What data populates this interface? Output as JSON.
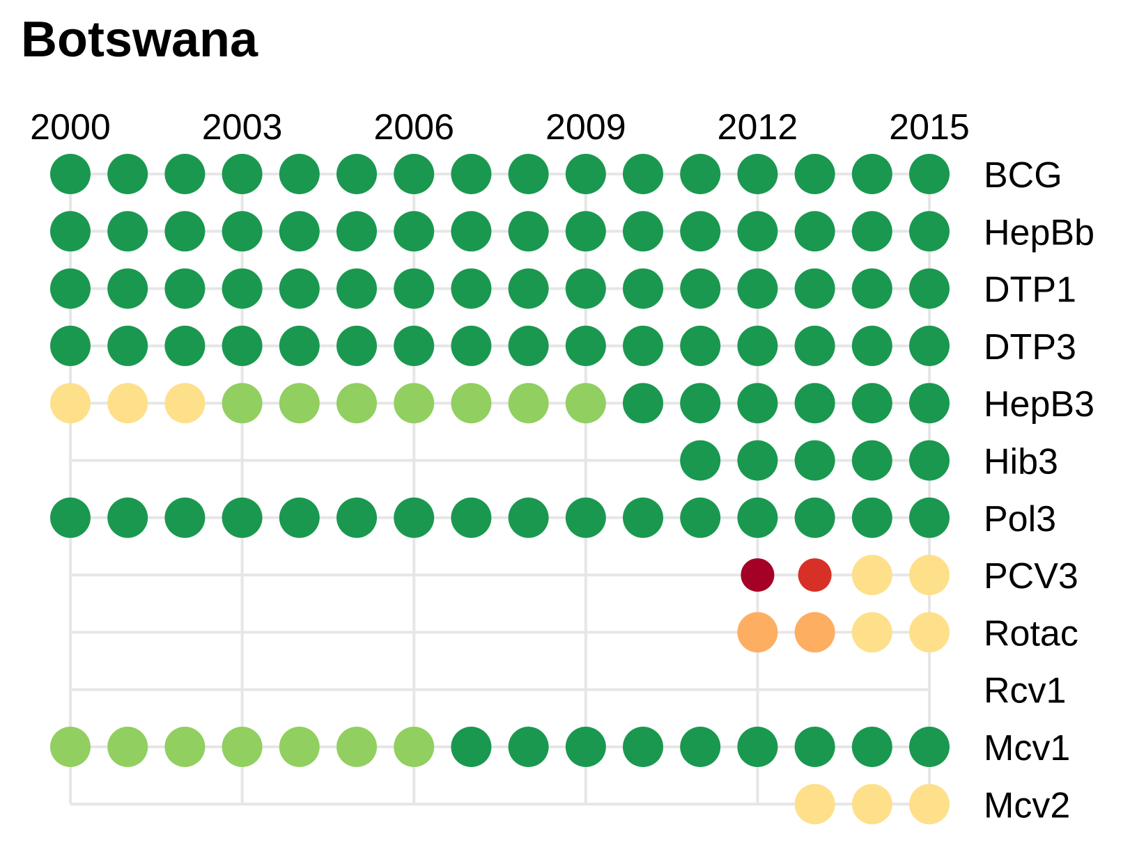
{
  "chart_data": {
    "type": "dot-matrix",
    "title": "Botswana",
    "x": [
      2000,
      2001,
      2002,
      2003,
      2004,
      2005,
      2006,
      2007,
      2008,
      2009,
      2010,
      2011,
      2012,
      2013,
      2014,
      2015
    ],
    "x_ticks": [
      "2000",
      "2003",
      "2006",
      "2009",
      "2012",
      "2015"
    ],
    "x_tick_values": [
      2000,
      2003,
      2006,
      2009,
      2012,
      2015
    ],
    "xlabel": "",
    "ylabel": "",
    "grid": true,
    "colors": {
      "dark_green": "#1a9850",
      "light_green": "#91cf60",
      "light_yellow": "#fee08b",
      "orange": "#fdae61",
      "red": "#d73027",
      "dark_red": "#a50026"
    },
    "series": [
      {
        "name": "BCG",
        "values": [
          "dark_green",
          "dark_green",
          "dark_green",
          "dark_green",
          "dark_green",
          "dark_green",
          "dark_green",
          "dark_green",
          "dark_green",
          "dark_green",
          "dark_green",
          "dark_green",
          "dark_green",
          "dark_green",
          "dark_green",
          "dark_green"
        ]
      },
      {
        "name": "HepBb",
        "values": [
          "dark_green",
          "dark_green",
          "dark_green",
          "dark_green",
          "dark_green",
          "dark_green",
          "dark_green",
          "dark_green",
          "dark_green",
          "dark_green",
          "dark_green",
          "dark_green",
          "dark_green",
          "dark_green",
          "dark_green",
          "dark_green"
        ]
      },
      {
        "name": "DTP1",
        "values": [
          "dark_green",
          "dark_green",
          "dark_green",
          "dark_green",
          "dark_green",
          "dark_green",
          "dark_green",
          "dark_green",
          "dark_green",
          "dark_green",
          "dark_green",
          "dark_green",
          "dark_green",
          "dark_green",
          "dark_green",
          "dark_green"
        ]
      },
      {
        "name": "DTP3",
        "values": [
          "dark_green",
          "dark_green",
          "dark_green",
          "dark_green",
          "dark_green",
          "dark_green",
          "dark_green",
          "dark_green",
          "dark_green",
          "dark_green",
          "dark_green",
          "dark_green",
          "dark_green",
          "dark_green",
          "dark_green",
          "dark_green"
        ]
      },
      {
        "name": "HepB3",
        "values": [
          "light_yellow",
          "light_yellow",
          "light_yellow",
          "light_green",
          "light_green",
          "light_green",
          "light_green",
          "light_green",
          "light_green",
          "light_green",
          "dark_green",
          "dark_green",
          "dark_green",
          "dark_green",
          "dark_green",
          "dark_green"
        ]
      },
      {
        "name": "Hib3",
        "values": [
          null,
          null,
          null,
          null,
          null,
          null,
          null,
          null,
          null,
          null,
          null,
          "dark_green",
          "dark_green",
          "dark_green",
          "dark_green",
          "dark_green"
        ]
      },
      {
        "name": "Pol3",
        "values": [
          "dark_green",
          "dark_green",
          "dark_green",
          "dark_green",
          "dark_green",
          "dark_green",
          "dark_green",
          "dark_green",
          "dark_green",
          "dark_green",
          "dark_green",
          "dark_green",
          "dark_green",
          "dark_green",
          "dark_green",
          "dark_green"
        ]
      },
      {
        "name": "PCV3",
        "values": [
          null,
          null,
          null,
          null,
          null,
          null,
          null,
          null,
          null,
          null,
          null,
          null,
          "dark_red",
          "red",
          "light_yellow",
          "light_yellow"
        ]
      },
      {
        "name": "Rotac",
        "values": [
          null,
          null,
          null,
          null,
          null,
          null,
          null,
          null,
          null,
          null,
          null,
          null,
          "orange",
          "orange",
          "light_yellow",
          "light_yellow"
        ]
      },
      {
        "name": "Rcv1",
        "values": [
          null,
          null,
          null,
          null,
          null,
          null,
          null,
          null,
          null,
          null,
          null,
          null,
          null,
          null,
          null,
          null
        ]
      },
      {
        "name": "Mcv1",
        "values": [
          "light_green",
          "light_green",
          "light_green",
          "light_green",
          "light_green",
          "light_green",
          "light_green",
          "dark_green",
          "dark_green",
          "dark_green",
          "dark_green",
          "dark_green",
          "dark_green",
          "dark_green",
          "dark_green",
          "dark_green"
        ]
      },
      {
        "name": "Mcv2",
        "values": [
          null,
          null,
          null,
          null,
          null,
          null,
          null,
          null,
          null,
          null,
          null,
          null,
          null,
          "light_yellow",
          "light_yellow",
          "light_yellow"
        ]
      }
    ]
  }
}
